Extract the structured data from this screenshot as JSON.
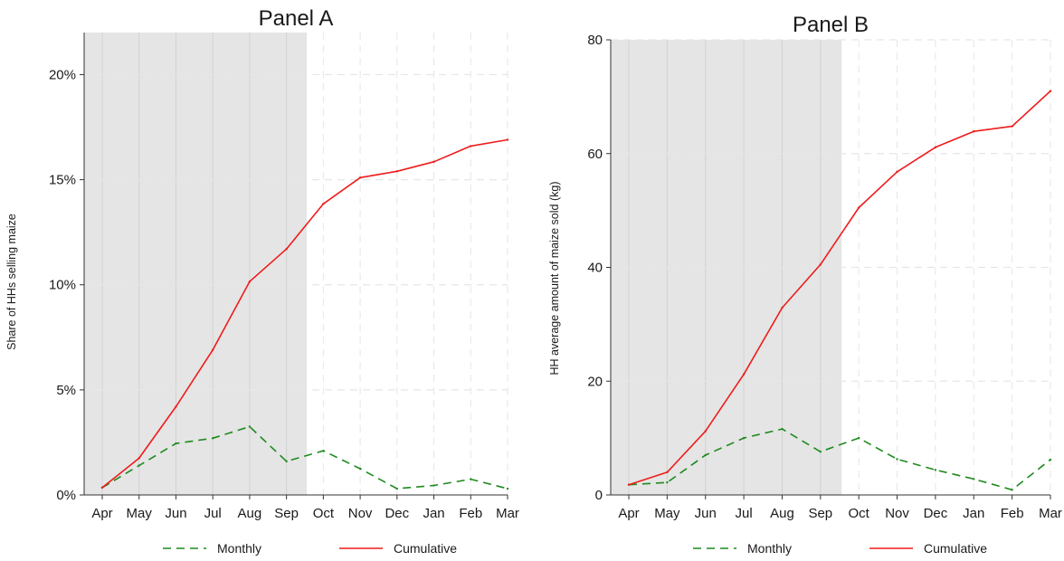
{
  "chart_data": [
    {
      "type": "line",
      "title": "Panel A",
      "ylabel": "Share of HHs selling maize",
      "xlabel": "",
      "categories": [
        "Apr",
        "May",
        "Jun",
        "Jul",
        "Aug",
        "Sep",
        "Oct",
        "Nov",
        "Dec",
        "Jan",
        "Feb",
        "Mar"
      ],
      "y_tick_values": [
        0,
        5,
        10,
        15,
        20
      ],
      "y_tick_labels": [
        "0%",
        "5%",
        "10%",
        "15%",
        "20%"
      ],
      "ylim": [
        0,
        22
      ],
      "grid": true,
      "shaded_region": {
        "from": "Apr",
        "to": "mid Sep-Oct",
        "from_x": 0,
        "to_x": 5.55,
        "color": "#e5e5e5"
      },
      "series": [
        {
          "name": "Monthly",
          "style": "dashed",
          "color": "#1e8a1e",
          "values": [
            0.35,
            1.4,
            2.45,
            2.7,
            3.25,
            1.6,
            2.1,
            1.25,
            0.3,
            0.45,
            0.75,
            0.3
          ]
        },
        {
          "name": "Cumulative",
          "style": "solid",
          "color": "#ee1c1c",
          "values": [
            0.35,
            1.75,
            4.2,
            6.9,
            10.15,
            11.7,
            13.85,
            15.1,
            15.4,
            15.85,
            16.6,
            16.9
          ]
        }
      ]
    },
    {
      "type": "line",
      "title": "Panel B",
      "ylabel": "HH average amount of maize sold (kg)",
      "xlabel": "",
      "categories": [
        "Apr",
        "May",
        "Jun",
        "Jul",
        "Aug",
        "Sep",
        "Oct",
        "Nov",
        "Dec",
        "Jan",
        "Feb",
        "Mar"
      ],
      "y_tick_values": [
        0,
        20,
        40,
        60,
        80
      ],
      "y_tick_labels": [
        "0",
        "20",
        "40",
        "60",
        "80"
      ],
      "ylim": [
        0,
        80
      ],
      "grid": true,
      "shaded_region": {
        "from": "Apr",
        "to": "mid Sep-Oct",
        "from_x": 0,
        "to_x": 5.55,
        "color": "#e5e5e5"
      },
      "series": [
        {
          "name": "Monthly",
          "style": "dashed",
          "color": "#1e8a1e",
          "values": [
            1.8,
            2.2,
            7.0,
            10.0,
            11.6,
            7.6,
            10.0,
            6.3,
            4.4,
            2.8,
            0.9,
            6.2
          ]
        },
        {
          "name": "Cumulative",
          "style": "solid",
          "color": "#ee1c1c",
          "values": [
            1.8,
            4.0,
            11.2,
            21.2,
            32.9,
            40.5,
            50.5,
            56.8,
            61.1,
            63.9,
            64.8,
            71.0
          ]
        }
      ]
    }
  ],
  "legend": [
    {
      "label": "Monthly",
      "style": "dashed",
      "color": "#1e8a1e"
    },
    {
      "label": "Cumulative",
      "style": "solid",
      "color": "#ee1c1c"
    }
  ]
}
